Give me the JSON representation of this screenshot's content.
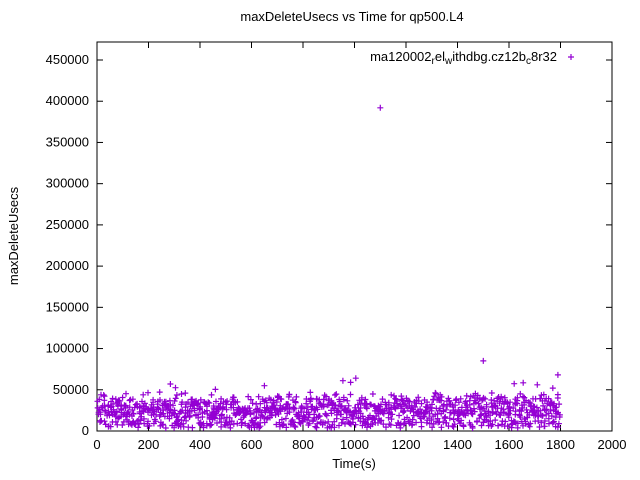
{
  "chart_data": {
    "type": "scatter",
    "title": "maxDeleteUsecs vs Time for qp500.L4",
    "xlabel": "Time(s)",
    "ylabel": "maxDeleteUsecs",
    "xlim": [
      0,
      2000
    ],
    "ylim": [
      0,
      471000
    ],
    "xticks": [
      0,
      200,
      400,
      600,
      800,
      1000,
      1200,
      1400,
      1600,
      1800,
      2000
    ],
    "yticks": [
      0,
      50000,
      100000,
      150000,
      200000,
      250000,
      300000,
      350000,
      400000,
      450000
    ],
    "grid": false,
    "marker": "plus",
    "marker_color": "#9400d3",
    "legend": {
      "position": "top-right",
      "label_plain": "ma120002_rel_withdbg.cz12b_c8r32",
      "segments": [
        {
          "text": "ma120002",
          "sub": false
        },
        {
          "text": "r",
          "sub": true
        },
        {
          "text": "el",
          "sub": false
        },
        {
          "text": "w",
          "sub": true
        },
        {
          "text": "ithdbg.cz12b",
          "sub": false
        },
        {
          "text": "c",
          "sub": true
        },
        {
          "text": "8r32",
          "sub": false
        }
      ]
    },
    "cloud": {
      "count": 1150,
      "seed": 1337,
      "x_range": [
        2,
        1798
      ],
      "y_base_range": [
        4000,
        48000
      ],
      "low_band_fraction": 0.12,
      "low_band_range": [
        3500,
        12000
      ],
      "spike_fraction": 0.025,
      "spike_extra_max": 12000
    },
    "outliers": [
      [
        1100,
        392000
      ],
      [
        1500,
        85000
      ],
      [
        1790,
        68000
      ],
      [
        1005,
        64000
      ],
      [
        955,
        61000
      ],
      [
        285,
        57000
      ],
      [
        305,
        52500
      ],
      [
        650,
        55000
      ],
      [
        1655,
        58500
      ],
      [
        1710,
        56000
      ],
      [
        1770,
        52000
      ],
      [
        460,
        50500
      ],
      [
        985,
        59000
      ]
    ]
  }
}
